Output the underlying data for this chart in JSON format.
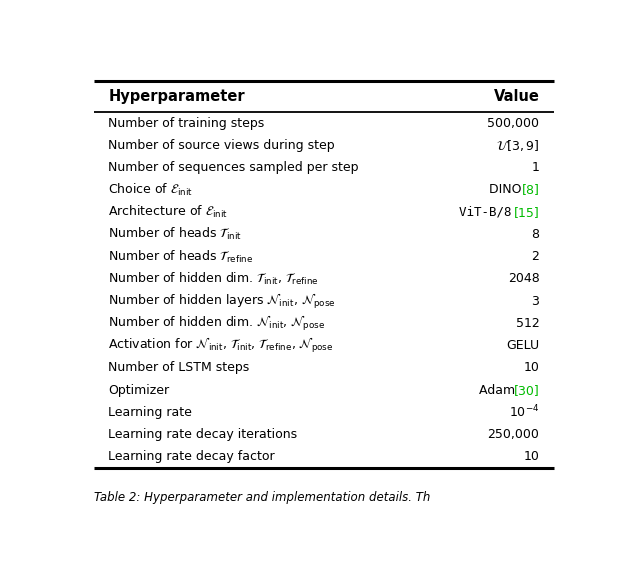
{
  "title_col1": "Hyperparameter",
  "title_col2": "Value",
  "rows": [
    {
      "param": "Number of training steps",
      "val_black": "500,000",
      "val_green": null,
      "val_tt": false
    },
    {
      "param": "Number of source views during step",
      "val_black": "$\\mathcal{U}[3, 9]$",
      "val_green": null,
      "val_tt": false
    },
    {
      "param": "Number of sequences sampled per step",
      "val_black": "1",
      "val_green": null,
      "val_tt": false
    },
    {
      "param": "Choice of $\\mathcal{E}_{\\mathrm{init}}$",
      "val_black": "DINO ",
      "val_green": "[8]",
      "val_tt": false
    },
    {
      "param": "Architecture of $\\mathcal{E}_{\\mathrm{init}}$",
      "val_black": "ViT-B/8 ",
      "val_green": "[15]",
      "val_tt": true
    },
    {
      "param": "Number of heads $\\mathcal{T}_{\\mathrm{init}}$",
      "val_black": "8",
      "val_green": null,
      "val_tt": false
    },
    {
      "param": "Number of heads $\\mathcal{T}_{\\mathrm{refine}}$",
      "val_black": "2",
      "val_green": null,
      "val_tt": false
    },
    {
      "param": "Number of hidden dim. $\\mathcal{T}_{\\mathrm{init}}$, $\\mathcal{T}_{\\mathrm{refine}}$",
      "val_black": "2048",
      "val_green": null,
      "val_tt": false
    },
    {
      "param": "Number of hidden layers $\\mathcal{N}_{\\mathrm{init}}$, $\\mathcal{N}_{\\mathrm{pose}}$",
      "val_black": "3",
      "val_green": null,
      "val_tt": false
    },
    {
      "param": "Number of hidden dim. $\\mathcal{N}_{\\mathrm{init}}$, $\\mathcal{N}_{\\mathrm{pose}}$",
      "val_black": "512",
      "val_green": null,
      "val_tt": false
    },
    {
      "param": "Activation for $\\mathcal{N}_{\\mathrm{init}}$, $\\mathcal{T}_{\\mathrm{init}}$, $\\mathcal{T}_{\\mathrm{refine}}$, $\\mathcal{N}_{\\mathrm{pose}}$",
      "val_black": "GELU",
      "val_green": null,
      "val_tt": false
    },
    {
      "param": "Number of LSTM steps",
      "val_black": "10",
      "val_green": null,
      "val_tt": false
    },
    {
      "param": "Optimizer",
      "val_black": "Adam ",
      "val_green": "[30]",
      "val_tt": false
    },
    {
      "param": "Learning rate",
      "val_black": "$10^{-4}$",
      "val_green": null,
      "val_tt": false
    },
    {
      "param": "Learning rate decay iterations",
      "val_black": "250,000",
      "val_green": null,
      "val_tt": false
    },
    {
      "param": "Learning rate decay factor",
      "val_black": "10",
      "val_green": null,
      "val_tt": false
    }
  ],
  "caption": "Table 2: Hyperparameter and implementation details. Th",
  "bg_color": "#ffffff",
  "text_color": "#000000",
  "green_color": "#00bb00",
  "font_size": 9.0,
  "header_font_size": 10.5,
  "caption_font_size": 8.5
}
